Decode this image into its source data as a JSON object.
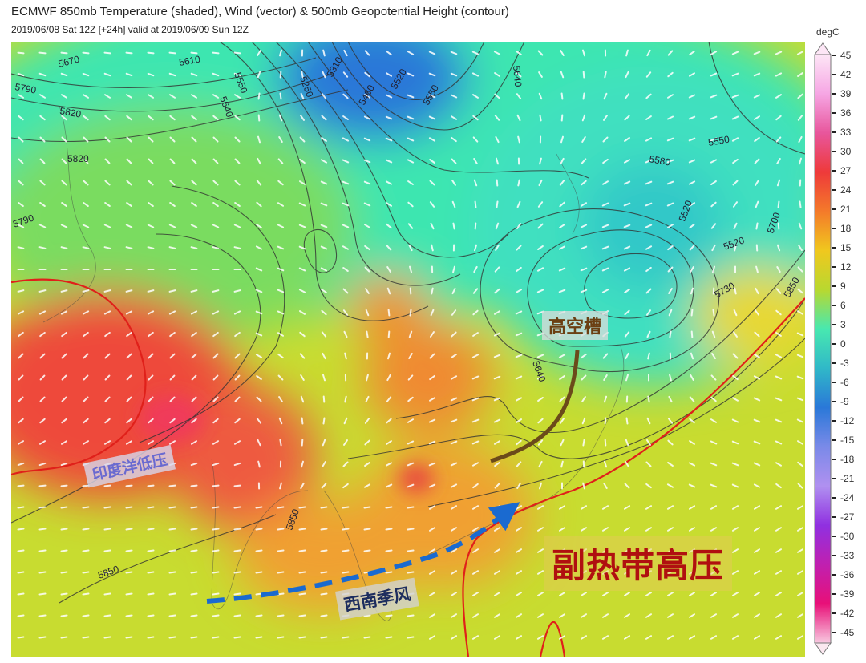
{
  "header": {
    "title": "ECMWF 850mb Temperature (shaded), Wind (vector) & 500mb Geopotential Height (contour)",
    "subtitle": "2019/06/08 Sat 12Z [+24h] valid at 2019/06/09 Sun 12Z"
  },
  "colorbar": {
    "unit": "degC",
    "ticks": [
      "45",
      "42",
      "39",
      "36",
      "33",
      "30",
      "27",
      "24",
      "21",
      "18",
      "15",
      "12",
      "9",
      "6",
      "3",
      "0",
      "-3",
      "-6",
      "-9",
      "-12",
      "-15",
      "-18",
      "-21",
      "-24",
      "-27",
      "-30",
      "-33",
      "-36",
      "-39",
      "-42",
      "-45"
    ],
    "colors": [
      "#fde6f6",
      "#f6a6e4",
      "#e8569c",
      "#ee3a3a",
      "#f47a2a",
      "#f0c81e",
      "#b8d830",
      "#48e8b0",
      "#30b8c8",
      "#2a78d8",
      "#7a8ae8",
      "#b090f0",
      "#9030e0",
      "#c020b0",
      "#e81078",
      "#f8c8e0"
    ]
  },
  "contour_labels": [
    "5670",
    "5610",
    "5790",
    "5820",
    "5820",
    "5790",
    "5550",
    "5640",
    "5250",
    "5310",
    "5460",
    "5520",
    "5550",
    "5640",
    "5580",
    "5550",
    "5520",
    "5520",
    "5700",
    "5730",
    "5850",
    "5640",
    "5850",
    "5850"
  ],
  "annotations": {
    "trough": "高空槽",
    "indian_low": "印度洋低压",
    "southwest_monsoon": "西南季风",
    "subtropical_high": "副热带高压"
  },
  "colors": {
    "subtropical_high_line": "#e0201a",
    "trough_line": "#6b4a1a",
    "monsoon_arrow": "#1a6ad0"
  }
}
